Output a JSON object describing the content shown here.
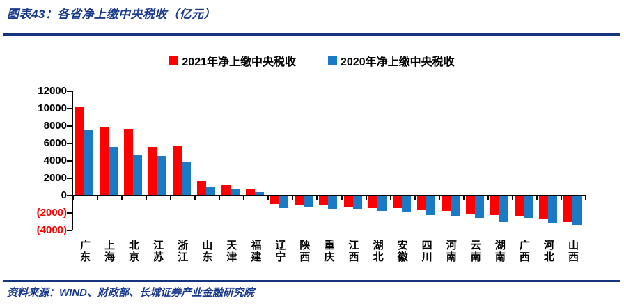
{
  "header": {
    "title": "图表43：各省净上缴中央税收（亿元）"
  },
  "legend": {
    "items": [
      {
        "label": "2021年净上缴中央税收",
        "color": "#FF0000"
      },
      {
        "label": "2020年净上缴中央税收",
        "color": "#1B7AC6"
      }
    ]
  },
  "colors": {
    "accent_blue": "#1A3A8C",
    "bar_red": "#FF0000",
    "bar_blue": "#1B7AC6",
    "negative_axis_label": "#FF0000"
  },
  "chart_data": {
    "type": "bar",
    "title": "各省净上缴中央税收（亿元）",
    "categories": [
      "广东",
      "上海",
      "北京",
      "江苏",
      "浙江",
      "山东",
      "天津",
      "福建",
      "辽宁",
      "陕西",
      "重庆",
      "江西",
      "湖北",
      "安徽",
      "四川",
      "河南",
      "云南",
      "湖南",
      "广西",
      "河北",
      "山西"
    ],
    "series": [
      {
        "name": "2021年净上缴中央税收",
        "color": "#FF0000",
        "values": [
          10250,
          7850,
          7700,
          5600,
          5650,
          1700,
          1250,
          760,
          -950,
          -1000,
          -1080,
          -1260,
          -1390,
          -1420,
          -1580,
          -1720,
          -2050,
          -2200,
          -2280,
          -2730,
          -3000
        ]
      },
      {
        "name": "2020年净上缴中央税收",
        "color": "#1B7AC6",
        "values": [
          7520,
          5600,
          4750,
          4550,
          3820,
          960,
          830,
          410,
          -1400,
          -1290,
          -1520,
          -1540,
          -1740,
          -1870,
          -2270,
          -2300,
          -2550,
          -3050,
          -2550,
          -3130,
          -3350
        ]
      }
    ],
    "ylim": [
      -4000,
      12000
    ],
    "ytick_step": 2000,
    "ytick_labels": [
      "12000",
      "10000",
      "8000",
      "6000",
      "4000",
      "2000",
      "0",
      "(2000)",
      "(4000)"
    ],
    "negative_tick_style": "parentheses-red",
    "grid": false,
    "legend_position": "top"
  },
  "footer": {
    "source": "资料来源：WIND、财政部、长城证券产业金融研究院"
  }
}
